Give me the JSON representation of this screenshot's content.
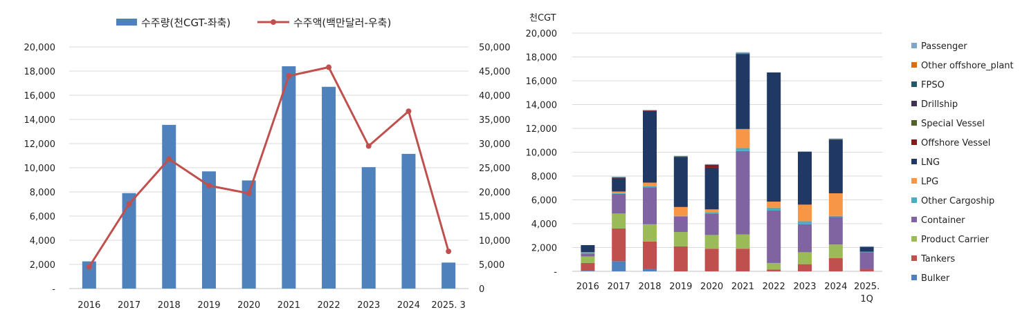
{
  "chart_data": [
    {
      "type": "bar+line",
      "categories": [
        "2016",
        "2017",
        "2018",
        "2019",
        "2020",
        "2021",
        "2022",
        "2023",
        "2024",
        "2025. 3"
      ],
      "series": [
        {
          "name": "수주량(천CGT-좌축)",
          "kind": "bar",
          "axis": "left",
          "color": "#4f81bd",
          "values": [
            2250,
            7900,
            13550,
            9700,
            8950,
            18400,
            16700,
            10050,
            11150,
            2150
          ]
        },
        {
          "name": "수주액(백만달러-우축)",
          "kind": "line",
          "axis": "right",
          "color": "#c0504d",
          "values": [
            4500,
            17500,
            26800,
            21300,
            19700,
            44000,
            45800,
            29500,
            36700,
            7700
          ]
        }
      ],
      "y_left": {
        "min": 0,
        "max": 20000,
        "ticks": [
          "-",
          "2,000",
          "4,000",
          "6,000",
          "8,000",
          "10,000",
          "12,000",
          "14,000",
          "16,000",
          "18,000",
          "20,000"
        ]
      },
      "y_right": {
        "min": 0,
        "max": 50000,
        "ticks": [
          "0",
          "5,000",
          "10,000",
          "15,000",
          "20,000",
          "25,000",
          "30,000",
          "35,000",
          "40,000",
          "45,000",
          "50,000"
        ]
      },
      "grid": true,
      "legend_position": "top"
    },
    {
      "type": "stacked-bar",
      "ylabel": "천CGT",
      "categories": [
        "2016",
        "2017",
        "2018",
        "2019",
        "2020",
        "2021",
        "2022",
        "2023",
        "2024",
        "2025.\n1Q"
      ],
      "category_lines": [
        [
          "2016"
        ],
        [
          "2017"
        ],
        [
          "2018"
        ],
        [
          "2019"
        ],
        [
          "2020"
        ],
        [
          "2021"
        ],
        [
          "2022"
        ],
        [
          "2023"
        ],
        [
          "2024"
        ],
        [
          "2025.",
          "1Q"
        ]
      ],
      "y": {
        "min": 0,
        "max": 20000,
        "ticks": [
          "-",
          "2,000",
          "4,000",
          "6,000",
          "8,000",
          "10,000",
          "12,000",
          "14,000",
          "16,000",
          "18,000",
          "20,000"
        ]
      },
      "grid": true,
      "legend_position": "right",
      "series": [
        {
          "name": "Bulker",
          "color": "#4f81bd",
          "values": [
            50,
            850,
            200,
            0,
            0,
            0,
            0,
            0,
            0,
            0
          ]
        },
        {
          "name": "Tankers",
          "color": "#c0504d",
          "values": [
            650,
            2750,
            2300,
            2100,
            1900,
            1900,
            150,
            600,
            1100,
            200
          ]
        },
        {
          "name": "Product Carrier",
          "color": "#9bbb59",
          "values": [
            550,
            1250,
            1450,
            1200,
            1150,
            1200,
            550,
            1000,
            1150,
            0
          ]
        },
        {
          "name": "Container",
          "color": "#8064a2",
          "values": [
            250,
            1650,
            3100,
            1300,
            1800,
            7000,
            4400,
            2350,
            2300,
            1400
          ]
        },
        {
          "name": "Other Cargoship",
          "color": "#4bacc6",
          "values": [
            50,
            50,
            100,
            50,
            100,
            250,
            250,
            250,
            100,
            50
          ]
        },
        {
          "name": "LPG",
          "color": "#f79646",
          "values": [
            50,
            150,
            300,
            750,
            250,
            1600,
            500,
            1400,
            1900,
            0
          ]
        },
        {
          "name": "LNG",
          "color": "#1f3864",
          "values": [
            600,
            1100,
            6000,
            4200,
            3500,
            6300,
            10850,
            4450,
            4500,
            400
          ]
        },
        {
          "name": "Offshore Vessel",
          "color": "#7f1d1d",
          "values": [
            0,
            50,
            50,
            0,
            250,
            0,
            0,
            0,
            0,
            0
          ]
        },
        {
          "name": "Special Vessel",
          "color": "#4f6228",
          "values": [
            0,
            50,
            0,
            50,
            0,
            0,
            0,
            0,
            50,
            0
          ]
        },
        {
          "name": "Drillship",
          "color": "#3f3151",
          "values": [
            0,
            0,
            0,
            0,
            0,
            0,
            0,
            0,
            0,
            0
          ]
        },
        {
          "name": "FPSO",
          "color": "#215968",
          "values": [
            0,
            0,
            0,
            0,
            0,
            50,
            0,
            0,
            0,
            0
          ]
        },
        {
          "name": "Other offshore_plant",
          "color": "#e36c0a",
          "values": [
            0,
            0,
            0,
            0,
            0,
            0,
            0,
            0,
            0,
            0
          ]
        },
        {
          "name": "Passenger",
          "color": "#7ea6c9",
          "values": [
            0,
            50,
            50,
            50,
            50,
            100,
            0,
            0,
            50,
            50
          ]
        }
      ]
    }
  ]
}
